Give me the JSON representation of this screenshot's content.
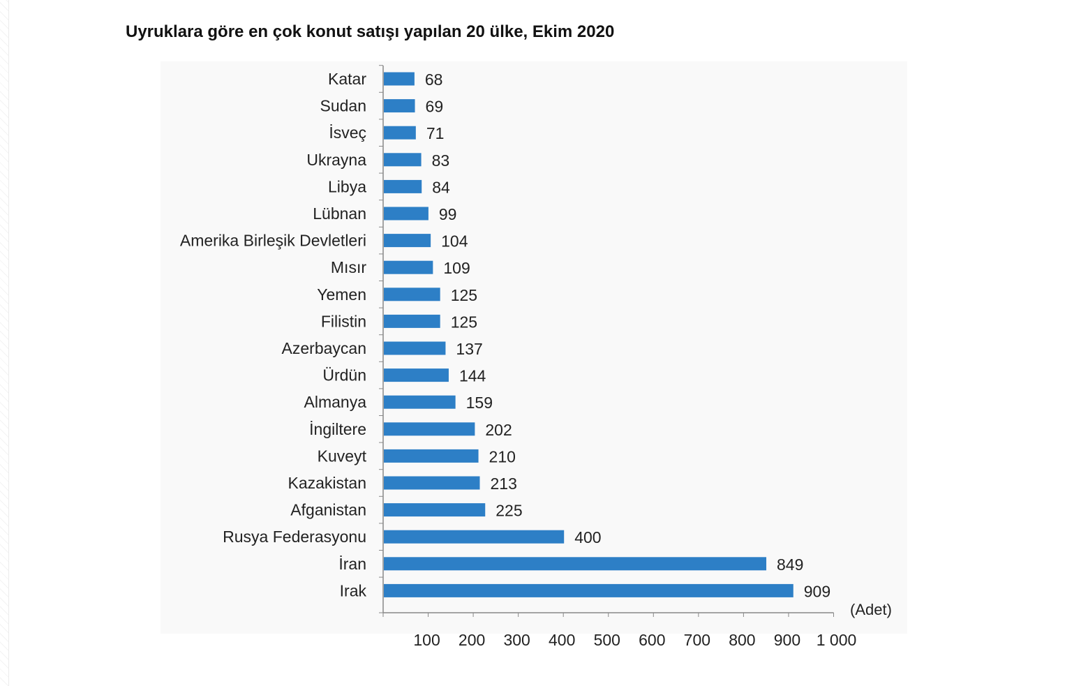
{
  "chart_data": {
    "type": "bar",
    "orientation": "horizontal",
    "title": "Uyruklara göre en çok konut satışı yapılan 20 ülke, Ekim 2020",
    "unit_label": "(Adet)",
    "bar_color": "#2d7fc6",
    "categories": [
      "Katar",
      "Sudan",
      "İsveç",
      "Ukrayna",
      "Libya",
      "Lübnan",
      "Amerika Birleşik Devletleri",
      "Mısır",
      "Yemen",
      "Filistin",
      "Azerbaycan",
      "Ürdün",
      "Almanya",
      "İngiltere",
      "Kuveyt",
      "Kazakistan",
      "Afganistan",
      "Rusya Federasyonu",
      "İran",
      "Irak"
    ],
    "values": [
      68,
      69,
      71,
      83,
      84,
      99,
      104,
      109,
      125,
      125,
      137,
      144,
      159,
      202,
      210,
      213,
      225,
      400,
      849,
      909
    ],
    "value_labels": [
      "68",
      "69",
      "71",
      "83",
      "84",
      "99",
      "104",
      "109",
      "125",
      "125",
      "137",
      "144",
      "159",
      "202",
      "210",
      "213",
      "225",
      "400",
      "849",
      "909"
    ],
    "xlim": [
      0,
      1000
    ],
    "x_ticks": [
      100,
      200,
      300,
      400,
      500,
      600,
      700,
      800,
      900,
      1000
    ],
    "x_tick_labels": [
      "100",
      "200",
      "300",
      "400",
      "500",
      "600",
      "700",
      "800",
      "900",
      "1 000"
    ],
    "legend": "none",
    "grid": false
  }
}
